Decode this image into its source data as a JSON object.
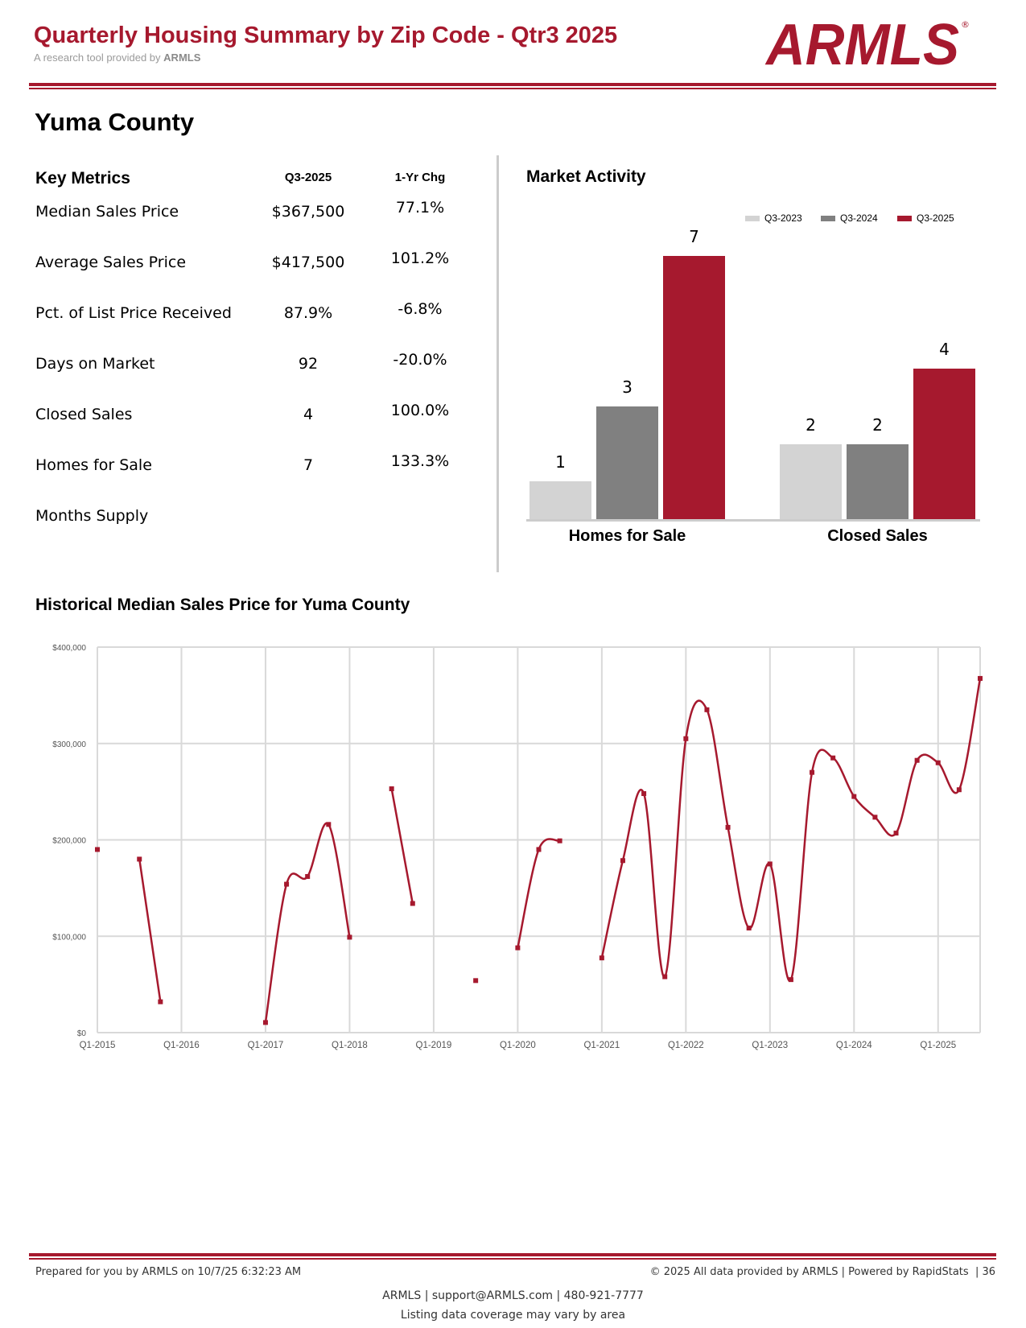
{
  "header": {
    "title": "Quarterly Housing Summary by Zip Code - Qtr3 2025",
    "subtitle_prefix": "A research tool provided by",
    "subtitle_brand": "ARMLS",
    "logo_text": "ARMLS",
    "brand_color": "#a6192e"
  },
  "area": "Yuma County",
  "key_metrics": {
    "heading": "Key Metrics",
    "col_current": "Q3-2025",
    "col_change": "1-Yr Chg",
    "rows": [
      {
        "label": "Median Sales Price",
        "value": "$367,500",
        "change": "77.1%"
      },
      {
        "label": "Average Sales Price",
        "value": "$417,500",
        "change": "101.2%"
      },
      {
        "label": "Pct. of List Price Received",
        "value": "87.9%",
        "change": "-6.8%"
      },
      {
        "label": "Days on Market",
        "value": "92",
        "change": "-20.0%"
      },
      {
        "label": "Closed Sales",
        "value": "4",
        "change": "100.0%"
      },
      {
        "label": "Homes for Sale",
        "value": "7",
        "change": "133.3%"
      },
      {
        "label": "Months Supply",
        "value": "",
        "change": ""
      }
    ]
  },
  "chart_data": [
    {
      "type": "bar",
      "title": "Market Activity",
      "categories": [
        "Homes for Sale",
        "Closed Sales"
      ],
      "series": [
        {
          "name": "Q3-2023",
          "color": "#d3d3d3",
          "values": [
            1,
            2
          ]
        },
        {
          "name": "Q3-2024",
          "color": "#808080",
          "values": [
            3,
            2
          ]
        },
        {
          "name": "Q3-2025",
          "color": "#a6192e",
          "values": [
            7,
            4
          ]
        }
      ],
      "ylim": [
        0,
        7
      ],
      "legend": "top-right"
    },
    {
      "type": "line",
      "title": "Historical Median Sales Price for Yuma County",
      "ylim": [
        0,
        400000
      ],
      "yticks": [
        "$0",
        "$100,000",
        "$200,000",
        "$300,000",
        "$400,000"
      ],
      "xticks": [
        "Q1-2015",
        "Q1-2016",
        "Q1-2017",
        "Q1-2018",
        "Q1-2019",
        "Q1-2020",
        "Q1-2021",
        "Q1-2022",
        "Q1-2023",
        "Q1-2024",
        "Q1-2025"
      ],
      "x_start": "Q1-2015",
      "x_end": "Q3-2025",
      "color": "#a6192e",
      "grid": true,
      "values": [
        190000,
        null,
        180000,
        32000,
        null,
        null,
        null,
        null,
        10500,
        154000,
        162000,
        216000,
        99000,
        null,
        253000,
        134000,
        null,
        null,
        54000,
        null,
        88000,
        190000,
        199000,
        null,
        77500,
        178500,
        248000,
        58000,
        305000,
        335000,
        213000,
        108500,
        175000,
        55000,
        270000,
        285000,
        245000,
        223500,
        207000,
        282500,
        280000,
        252000,
        367500
      ]
    }
  ],
  "footer": {
    "prepared": "Prepared for you by ARMLS on 10/7/25 6:32:23 AM",
    "copyright": "© 2025 All data provided by ARMLS | Powered by RapidStats  | 36",
    "contact": "ARMLS | support@ARMLS.com | 480-921-7777",
    "note": "Listing data coverage may vary by area"
  }
}
